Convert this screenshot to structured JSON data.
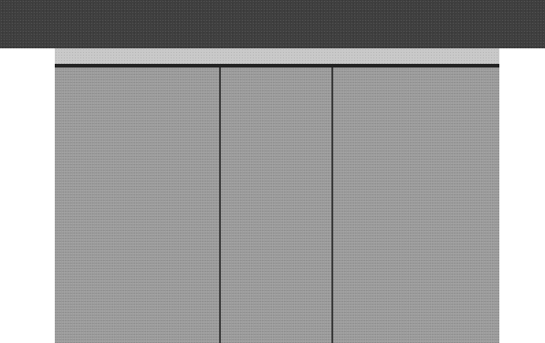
{
  "window": {
    "title": ""
  },
  "panel": {
    "header_text": "",
    "columns": [
      "",
      "",
      ""
    ]
  }
}
